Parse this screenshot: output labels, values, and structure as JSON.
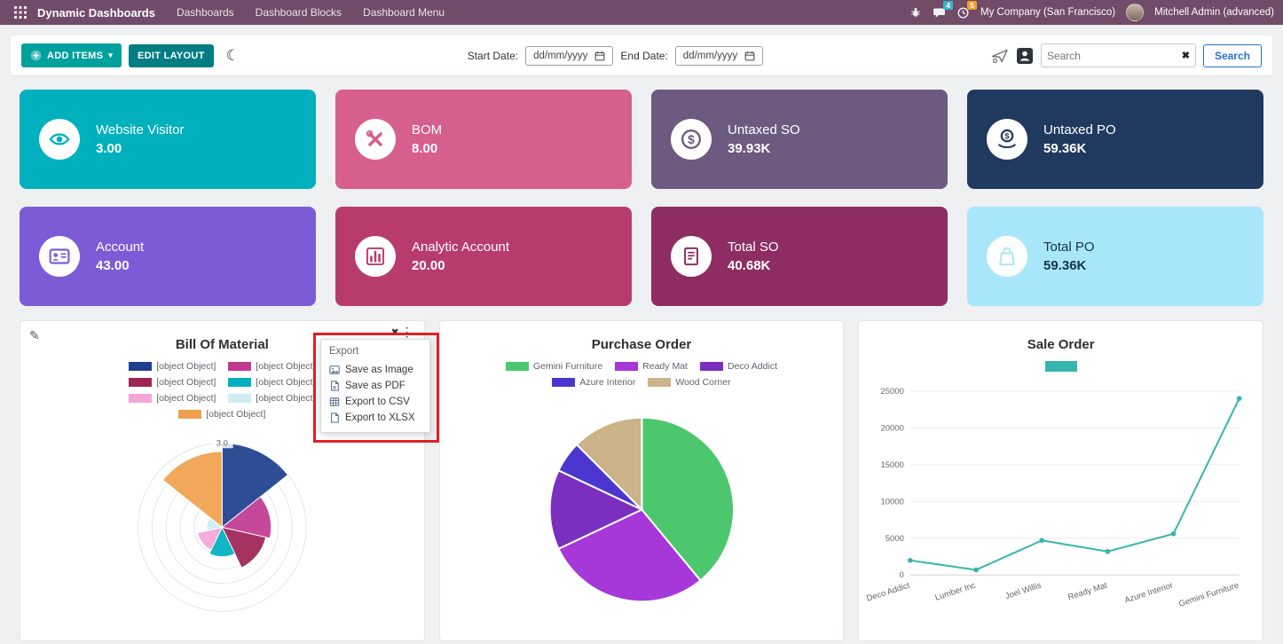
{
  "colors": {
    "navbar_bg": "#714B67",
    "add_items_bg": "#00a09d",
    "edit_layout_bg": "#017e84",
    "search_button": "#2d6fd1",
    "annotation_red": "#e02020",
    "messages_badge_bg": "#38b6c9",
    "activities_badge_bg": "#eda12a"
  },
  "navbar": {
    "app_title": "Dynamic Dashboards",
    "menu": [
      "Dashboards",
      "Dashboard Blocks",
      "Dashboard Menu"
    ],
    "messages_badge": "4",
    "activities_badge": "5",
    "company": "My Company (San Francisco)",
    "user": "Mitchell Admin (advanced)"
  },
  "toolbar": {
    "add_items_label": "ADD ITEMS",
    "edit_layout_label": "EDIT LAYOUT",
    "start_date_label": "Start Date:",
    "end_date_label": "End Date:",
    "date_placeholder": "dd/mm/yyyy",
    "search_placeholder": "Search",
    "search_button_label": "Search"
  },
  "tiles": [
    {
      "title": "Website Visitor",
      "value": "3.00",
      "bg": "#00b0bd",
      "text_color": "#ffffff",
      "icon": "eye-icon"
    },
    {
      "title": "BOM",
      "value": "8.00",
      "bg": "#d65f8d",
      "text_color": "#ffffff",
      "icon": "tools-icon"
    },
    {
      "title": "Untaxed SO",
      "value": "39.93K",
      "bg": "#6c5a80",
      "text_color": "#ffffff",
      "icon": "dollar-coin-icon"
    },
    {
      "title": "Untaxed PO",
      "value": "59.36K",
      "bg": "#1f3a5e",
      "text_color": "#ffffff",
      "icon": "coin-hand-icon"
    },
    {
      "title": "Account",
      "value": "43.00",
      "bg": "#7c5cd6",
      "text_color": "#ffffff",
      "icon": "id-card-icon"
    },
    {
      "title": "Analytic Account",
      "value": "20.00",
      "bg": "#b73c6d",
      "text_color": "#ffffff",
      "icon": "bar-chart-icon"
    },
    {
      "title": "Total SO",
      "value": "40.68K",
      "bg": "#8e2d61",
      "text_color": "#ffffff",
      "icon": "invoice-icon"
    },
    {
      "title": "Total PO",
      "value": "59.36K",
      "bg": "#a8e7f9",
      "text_color": "#17324d",
      "icon": "shopping-bag-icon"
    }
  ],
  "export_menu": {
    "header": "Export",
    "items": [
      "Save as Image",
      "Save as PDF",
      "Export to CSV",
      "Export to XLSX"
    ]
  },
  "chart_data": [
    {
      "type": "polarArea",
      "title": "Bill Of Material",
      "legend_labels": [
        "[object Object]",
        "[object Object]",
        "[object Object]",
        "[object Object]",
        "[object Object]",
        "[object Object]",
        "[object Object]"
      ],
      "values": [
        3.0,
        1.75,
        1.6,
        1.05,
        0.9,
        0.55,
        2.7
      ],
      "colors": [
        "#1e3f8f",
        "#c13a92",
        "#9e2456",
        "#00afc0",
        "#f4a6d7",
        "#cfeef2",
        "#f0a14e"
      ],
      "radial_ticks": [
        0.5,
        1.0,
        1.5,
        2.0,
        2.5,
        3.0
      ],
      "radial_max_label": "3.0",
      "legend_position": "top"
    },
    {
      "type": "pie",
      "title": "Purchase Order",
      "labels": [
        "Gemini Furniture",
        "Ready Mat",
        "Deco Addict",
        "Azure Interior",
        "Wood Corner"
      ],
      "values": [
        39,
        29,
        14,
        5.5,
        12.5
      ],
      "colors": [
        "#4cc76d",
        "#a638d9",
        "#7b2fbf",
        "#4b37cf",
        "#ccb38a"
      ],
      "legend_position": "top"
    },
    {
      "type": "line",
      "title": "Sale Order",
      "categories": [
        "Deco Addict",
        "Lumber Inc",
        "Joel Willis",
        "Ready Mat",
        "Azure Interior",
        "Gemini Furniture"
      ],
      "values": [
        2000,
        700,
        4700,
        3200,
        5600,
        24000
      ],
      "color": "#35b5ad",
      "ylim": [
        0,
        25000
      ],
      "yticks": [
        0,
        5000,
        10000,
        15000,
        20000,
        25000
      ],
      "legend_position": "top"
    }
  ]
}
